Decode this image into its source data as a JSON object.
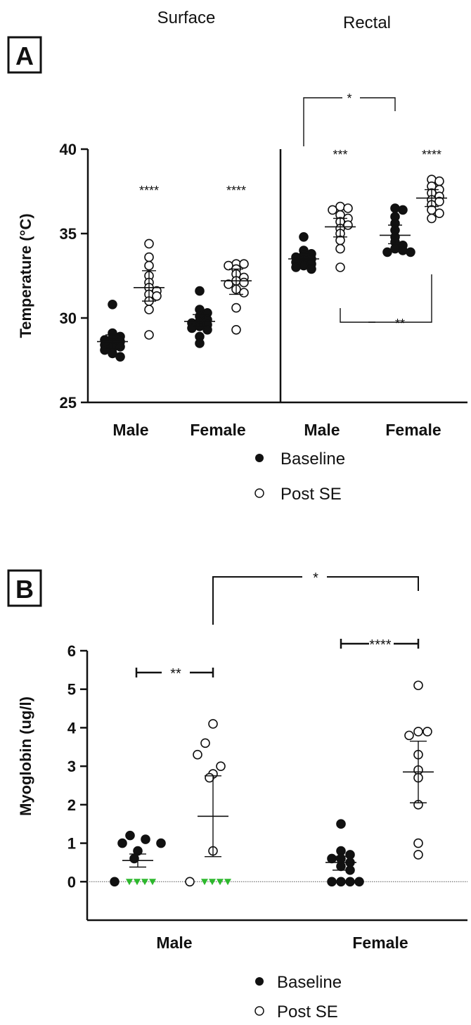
{
  "panel_a": {
    "letter": "A",
    "surface_header": "Surface",
    "rectal_header": "Rectal",
    "legend": {
      "filled": "Baseline",
      "open": "Post SE"
    }
  },
  "panel_b": {
    "letter": "B",
    "legend": {
      "filled": "Baseline",
      "open": "Post SE"
    }
  },
  "chart_data": [
    {
      "type": "scatter",
      "panel": "A",
      "subpanel": "Surface",
      "title": "Surface",
      "xlabel": "",
      "ylabel": "Temperature (°C)",
      "ylim": [
        25,
        40
      ],
      "yticks": [
        25,
        30,
        35,
        40
      ],
      "categories": [
        "Male",
        "Female"
      ],
      "series": [
        {
          "name": "Baseline",
          "marker": "filled",
          "groups": [
            {
              "category": "Male",
              "values": [
                30.8,
                29.1,
                28.9,
                28.8,
                28.7,
                28.6,
                28.5,
                28.4,
                28.3,
                28.2,
                28.1,
                27.9,
                27.7
              ],
              "mean": 28.6,
              "sem_low": 28.2,
              "sem_high": 29.0
            },
            {
              "category": "Female",
              "values": [
                31.6,
                30.5,
                30.3,
                30.1,
                29.9,
                29.8,
                29.7,
                29.6,
                29.5,
                29.4,
                29.3,
                28.9,
                28.5
              ],
              "mean": 29.8,
              "sem_low": 29.5,
              "sem_high": 30.2
            }
          ]
        },
        {
          "name": "Post SE",
          "marker": "open",
          "groups": [
            {
              "category": "Male",
              "values": [
                34.4,
                33.6,
                33.1,
                32.5,
                32.1,
                31.8,
                31.6,
                31.4,
                31.3,
                31.0,
                30.5,
                29.0
              ],
              "mean": 31.8,
              "sem_low": 31.0,
              "sem_high": 32.8
            },
            {
              "category": "Female",
              "values": [
                33.2,
                33.2,
                33.1,
                32.9,
                32.6,
                32.4,
                32.2,
                32.1,
                32.0,
                31.7,
                31.5,
                30.6,
                29.3
              ],
              "mean": 32.2,
              "sem_low": 31.4,
              "sem_high": 32.9
            }
          ]
        }
      ],
      "annotations": [
        {
          "text": "****",
          "category": "Male",
          "series": "Post SE"
        },
        {
          "text": "****",
          "category": "Female",
          "series": "Post SE"
        }
      ]
    },
    {
      "type": "scatter",
      "panel": "A",
      "subpanel": "Rectal",
      "title": "Rectal",
      "xlabel": "",
      "ylabel": "",
      "ylim": [
        25,
        40
      ],
      "categories": [
        "Male",
        "Female"
      ],
      "series": [
        {
          "name": "Baseline",
          "marker": "filled",
          "groups": [
            {
              "category": "Male",
              "values": [
                34.8,
                34.0,
                33.8,
                33.7,
                33.6,
                33.5,
                33.4,
                33.3,
                33.2,
                33.1,
                33.0,
                32.9
              ],
              "mean": 33.5,
              "sem_low": 33.3,
              "sem_high": 33.8
            },
            {
              "category": "Female",
              "values": [
                36.5,
                36.4,
                36.0,
                35.6,
                35.2,
                34.8,
                34.5,
                34.3,
                34.1,
                34.0,
                33.9,
                33.9
              ],
              "mean": 34.9,
              "sem_low": 34.4,
              "sem_high": 35.5
            }
          ]
        },
        {
          "name": "Post SE",
          "marker": "open",
          "groups": [
            {
              "category": "Male",
              "values": [
                36.6,
                36.5,
                36.4,
                36.1,
                35.9,
                35.7,
                35.5,
                35.3,
                35.0,
                34.6,
                34.1,
                33.0
              ],
              "mean": 35.4,
              "sem_low": 34.8,
              "sem_high": 35.9
            },
            {
              "category": "Female",
              "values": [
                38.2,
                38.1,
                37.8,
                37.6,
                37.4,
                37.2,
                37.0,
                36.9,
                36.7,
                36.4,
                36.2,
                35.9
              ],
              "mean": 37.1,
              "sem_low": 36.6,
              "sem_high": 37.6
            }
          ]
        }
      ],
      "annotations": [
        {
          "text": "***",
          "category": "Male",
          "series": "Post SE"
        },
        {
          "text": "****",
          "category": "Female",
          "series": "Post SE"
        },
        {
          "text": "*",
          "from": "Male Baseline",
          "to": "Female Baseline"
        },
        {
          "text": "**",
          "from": "Male Post SE",
          "to": "Female Post SE"
        }
      ]
    },
    {
      "type": "scatter",
      "panel": "B",
      "xlabel": "",
      "ylabel": "Myoglobin (ug/l)",
      "ylim": [
        -1,
        6
      ],
      "yticks": [
        0,
        1,
        2,
        3,
        4,
        5,
        6
      ],
      "categories": [
        "Male",
        "Female"
      ],
      "series": [
        {
          "name": "Baseline",
          "marker": "filled",
          "groups": [
            {
              "category": "Male",
              "values": [
                1.2,
                1.1,
                1.0,
                1.0,
                0.8,
                0.6,
                0.0
              ],
              "below_detection": 4,
              "mean": 0.55,
              "sem_low": 0.38,
              "sem_high": 0.72
            },
            {
              "category": "Female",
              "values": [
                1.5,
                0.8,
                0.7,
                0.6,
                0.6,
                0.5,
                0.4,
                0.3,
                0.0,
                0.0,
                0.0,
                0.0
              ],
              "mean": 0.5,
              "sem_low": 0.3,
              "sem_high": 0.66
            }
          ]
        },
        {
          "name": "Post SE",
          "marker": "open",
          "groups": [
            {
              "category": "Male",
              "values": [
                4.1,
                3.6,
                3.3,
                3.0,
                2.8,
                2.7,
                0.8,
                0.0
              ],
              "below_detection": 4,
              "mean": 1.7,
              "sem_low": 0.65,
              "sem_high": 2.75
            },
            {
              "category": "Female",
              "values": [
                5.1,
                3.9,
                3.9,
                3.8,
                3.3,
                2.9,
                2.7,
                2.0,
                1.0,
                0.7
              ],
              "mean": 2.85,
              "sem_low": 2.05,
              "sem_high": 3.65
            }
          ]
        }
      ],
      "annotations": [
        {
          "text": "**",
          "from": "Male Baseline",
          "to": "Male Post SE"
        },
        {
          "text": "****",
          "from": "Female Baseline",
          "to": "Female Post SE"
        },
        {
          "text": "*",
          "from": "Male Post SE",
          "to": "Female Post SE"
        }
      ],
      "colors": {
        "below_detection_marker": "#2db82d"
      }
    }
  ]
}
